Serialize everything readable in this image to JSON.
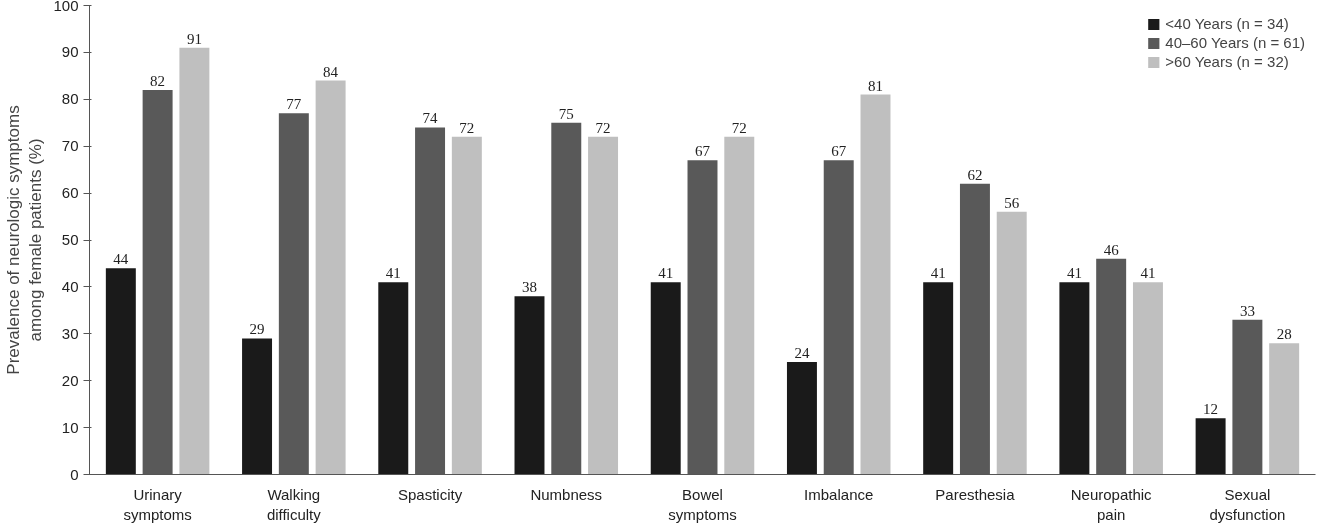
{
  "chart_data": {
    "type": "bar",
    "ylabel": "Prevalence of neurologic symptoms among female patients (%)",
    "categories": [
      "Urinary symptoms",
      "Walking difficulty",
      "Spasticity",
      "Numbness",
      "Bowel symptoms",
      "Imbalance",
      "Paresthesia",
      "Neuropathic pain",
      "Sexual dysfunction"
    ],
    "series": [
      {
        "name": "<40 Years (n = 34)",
        "color": "#1a1a1a",
        "values": [
          44,
          29,
          41,
          38,
          41,
          24,
          41,
          41,
          12
        ]
      },
      {
        "name": "40–60 Years (n = 61)",
        "color": "#595959",
        "values": [
          82,
          77,
          74,
          75,
          67,
          67,
          62,
          46,
          33
        ]
      },
      {
        "name": ">60 Years (n = 32)",
        "color": "#bfbfbf",
        "values": [
          91,
          84,
          72,
          72,
          72,
          81,
          56,
          41,
          28
        ]
      }
    ],
    "ylim": [
      0,
      100
    ],
    "yticks": [
      0,
      10,
      20,
      30,
      40,
      50,
      60,
      70,
      80,
      90,
      100
    ],
    "data_labels": true,
    "grid": false,
    "legend": "top right"
  }
}
